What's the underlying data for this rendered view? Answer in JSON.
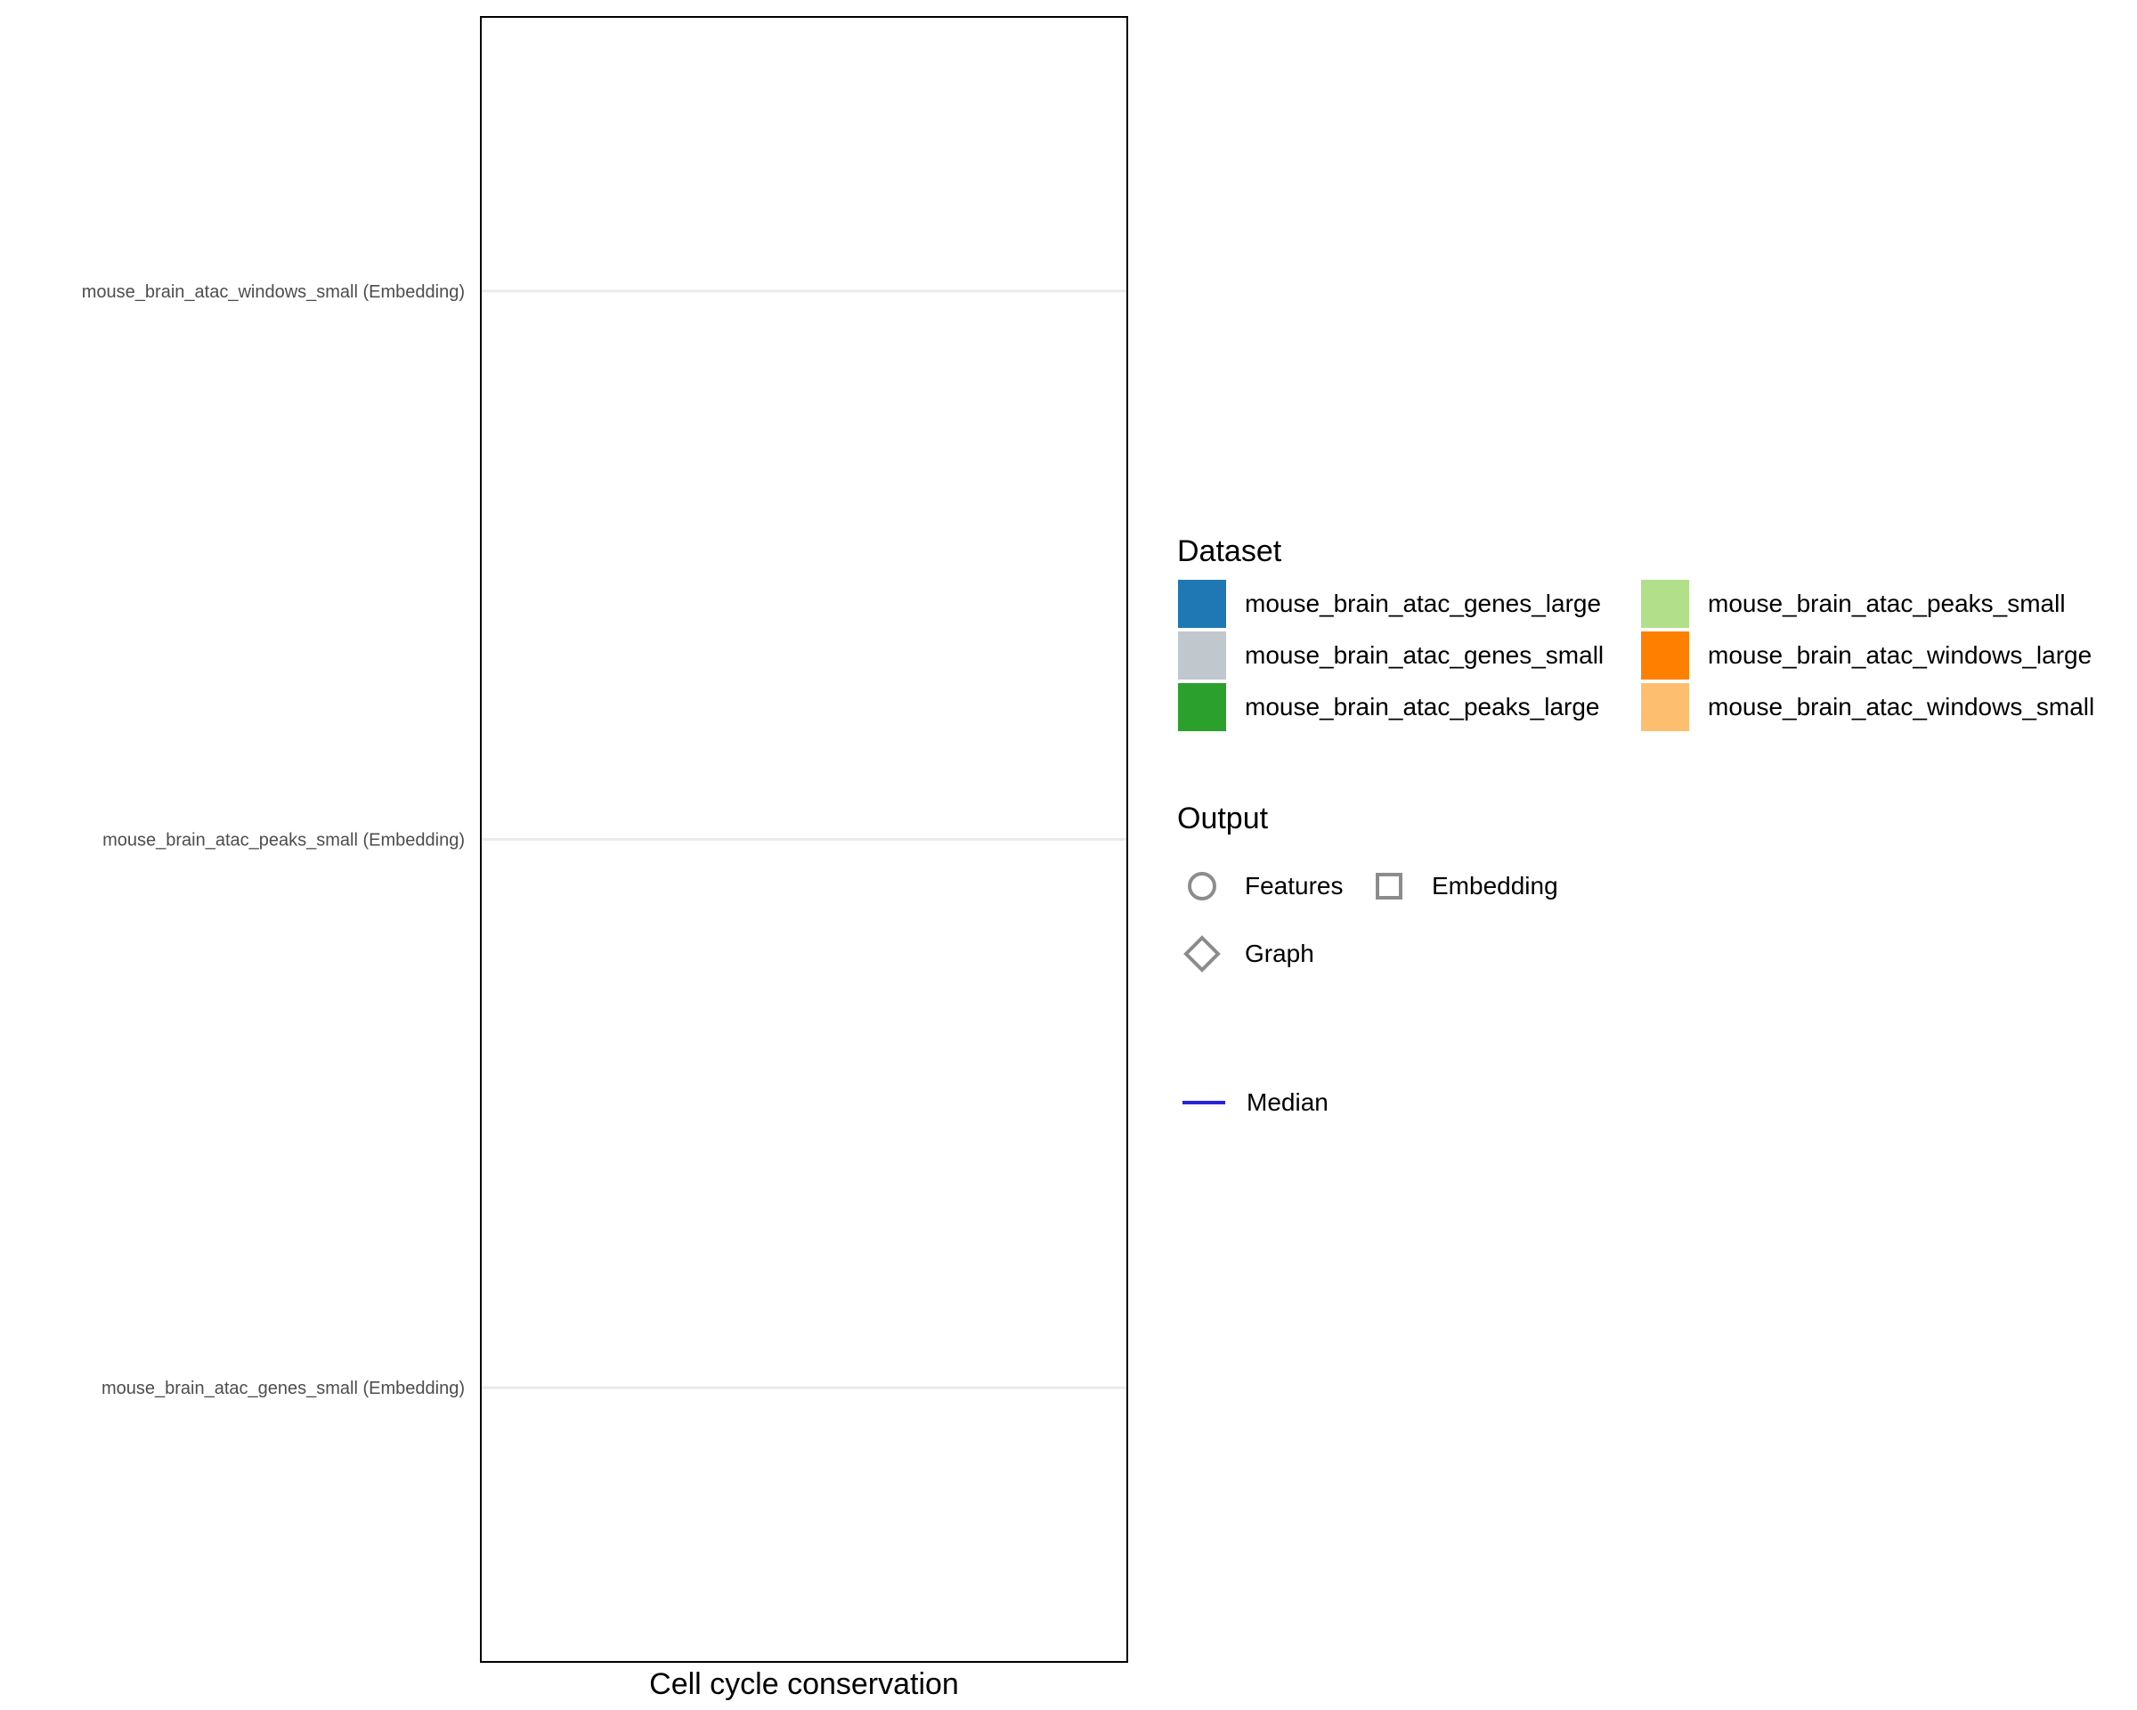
{
  "chart_data": {
    "type": "scatter",
    "title": "",
    "xlabel": "Cell cycle conservation",
    "ylabel": "",
    "categories": [
      "mouse_brain_atac_windows_small (Embedding)",
      "mouse_brain_atac_peaks_small (Embedding)",
      "mouse_brain_atac_genes_small (Embedding)"
    ],
    "series": [],
    "grid": true,
    "legend_position": "right",
    "legends": {
      "dataset": {
        "title": "Dataset",
        "items": [
          {
            "label": "mouse_brain_atac_genes_large",
            "color": "#1f77b4"
          },
          {
            "label": "mouse_brain_atac_genes_small",
            "color": "#c0c8cd"
          },
          {
            "label": "mouse_brain_atac_peaks_large",
            "color": "#2ca02c"
          },
          {
            "label": "mouse_brain_atac_peaks_small",
            "color": "#b2df8a"
          },
          {
            "label": "mouse_brain_atac_windows_large",
            "color": "#ff7f00"
          },
          {
            "label": "mouse_brain_atac_windows_small",
            "color": "#fdbf6f"
          }
        ]
      },
      "output": {
        "title": "Output",
        "items": [
          {
            "label": "Features",
            "shape": "circle"
          },
          {
            "label": "Embedding",
            "shape": "square"
          },
          {
            "label": "Graph",
            "shape": "diamond"
          }
        ]
      },
      "median": {
        "label": "Median",
        "color": "#2424d9"
      }
    }
  }
}
